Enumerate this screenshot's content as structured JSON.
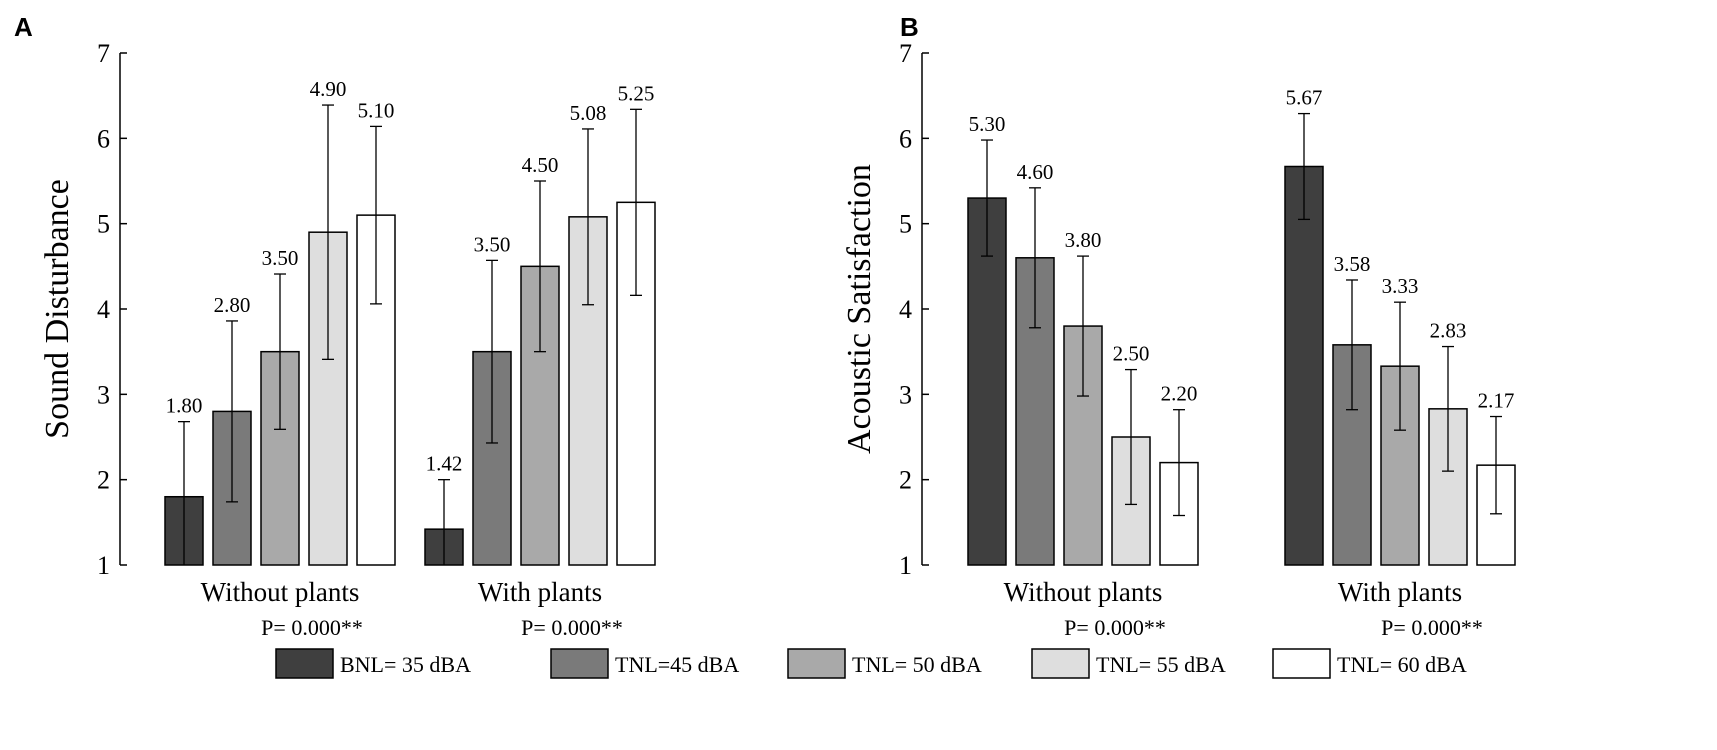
{
  "panel_labels": [
    "A",
    "B"
  ],
  "legend": [
    {
      "label": "BNL= 35 dBA",
      "color": "#3f3f3f"
    },
    {
      "label": "TNL=45 dBA",
      "color": "#7a7a7a"
    },
    {
      "label": "TNL= 50 dBA",
      "color": "#a9a9a9"
    },
    {
      "label": "TNL= 55 dBA",
      "color": "#dedede"
    },
    {
      "label": "TNL= 60 dBA",
      "color": "#ffffff"
    }
  ],
  "chart_data": [
    {
      "type": "bar",
      "panel": "A",
      "title": "",
      "xlabel": "",
      "ylabel": "Sound Disturbance",
      "ylim": [
        1,
        7
      ],
      "yticks": [
        "1",
        "2",
        "3",
        "4",
        "5",
        "6",
        "7"
      ],
      "categories": [
        "Without plants",
        "With plants"
      ],
      "p_values": [
        "P= 0.000**",
        "P= 0.000**"
      ],
      "series": [
        {
          "name": "BNL= 35 dBA",
          "values": [
            1.8,
            1.42
          ],
          "labels": [
            "1.80",
            "1.42"
          ],
          "err_upper": [
            2.68,
            2.0
          ]
        },
        {
          "name": "TNL=45 dBA",
          "values": [
            2.8,
            3.5
          ],
          "labels": [
            "2.80",
            "3.50"
          ],
          "err_upper": [
            3.86,
            4.57
          ]
        },
        {
          "name": "TNL= 50 dBA",
          "values": [
            3.5,
            4.5
          ],
          "labels": [
            "3.50",
            "4.50"
          ],
          "err_upper": [
            4.41,
            5.5
          ]
        },
        {
          "name": "TNL= 55 dBA",
          "values": [
            4.9,
            5.08
          ],
          "labels": [
            "4.90",
            "5.08"
          ],
          "err_upper": [
            6.39,
            6.11
          ]
        },
        {
          "name": "TNL= 60 dBA",
          "values": [
            5.1,
            5.25
          ],
          "labels": [
            "5.10",
            "5.25"
          ],
          "err_upper": [
            6.14,
            6.34
          ]
        }
      ]
    },
    {
      "type": "bar",
      "panel": "B",
      "title": "",
      "xlabel": "",
      "ylabel": "Acoustic Satisfaction",
      "ylim": [
        1,
        7
      ],
      "yticks": [
        "1",
        "2",
        "3",
        "4",
        "5",
        "6",
        "7"
      ],
      "categories": [
        "Without plants",
        "With plants"
      ],
      "p_values": [
        "P= 0.000**",
        "P= 0.000**"
      ],
      "series": [
        {
          "name": "BNL= 35 dBA",
          "values": [
            5.3,
            5.67
          ],
          "labels": [
            "5.30",
            "5.67"
          ],
          "err_upper": [
            5.98,
            6.29
          ]
        },
        {
          "name": "TNL=45 dBA",
          "values": [
            4.6,
            3.58
          ],
          "labels": [
            "4.60",
            "3.58"
          ],
          "err_upper": [
            5.42,
            4.34
          ]
        },
        {
          "name": "TNL= 50 dBA",
          "values": [
            3.8,
            3.33
          ],
          "labels": [
            "3.80",
            "3.33"
          ],
          "err_upper": [
            4.62,
            4.08
          ]
        },
        {
          "name": "TNL= 55 dBA",
          "values": [
            2.5,
            2.83
          ],
          "labels": [
            "2.50",
            "2.83"
          ],
          "err_upper": [
            3.29,
            3.56
          ]
        },
        {
          "name": "TNL= 60 dBA",
          "values": [
            2.2,
            2.17
          ],
          "labels": [
            "2.20",
            "2.17"
          ],
          "err_upper": [
            2.82,
            2.74
          ]
        }
      ]
    }
  ]
}
